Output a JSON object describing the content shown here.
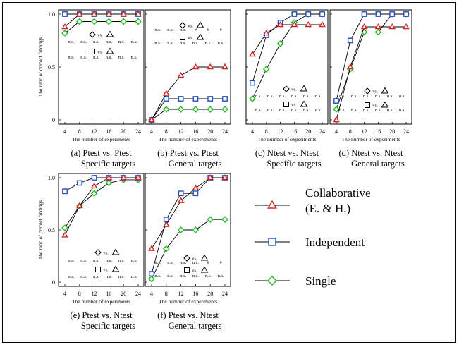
{
  "chart_data": [
    {
      "id": "a",
      "type": "line",
      "caption_line1": "(a) Ptest vs. Ptest",
      "caption_line2": "Specific targets",
      "ylabel": "The ratio of correct findings",
      "xlabel": "The number of experiments",
      "x": [
        4,
        8,
        12,
        16,
        20,
        24
      ],
      "xticks": [
        "4",
        "8",
        "12",
        "16",
        "20",
        "24"
      ],
      "yticks": [
        "0",
        "0.5",
        "1.0"
      ],
      "ylim": [
        0,
        1
      ],
      "series": [
        {
          "name": "Collaborative (E. & H.)",
          "values": [
            0.88,
            1.0,
            1.0,
            1.0,
            1.0,
            1.0
          ]
        },
        {
          "name": "Independent",
          "values": [
            1.0,
            1.0,
            1.0,
            1.0,
            1.0,
            1.0
          ]
        },
        {
          "name": "Single",
          "values": [
            0.82,
            0.93,
            0.93,
            0.93,
            0.93,
            0.93
          ]
        }
      ],
      "sig_rows": [
        [
          "n.s.",
          "n.s.",
          "n.s.",
          "n.s.",
          "n.s.",
          "n.s."
        ],
        [
          "n.s.",
          "n.s.",
          "n.s.",
          "n.s.",
          "n.s.",
          "n.s."
        ]
      ]
    },
    {
      "id": "b",
      "type": "line",
      "caption_line1": "(b) Ptest vs. Ptest",
      "caption_line2": "General targets",
      "xlabel": "The number of experiments",
      "x": [
        4,
        8,
        12,
        16,
        20,
        24
      ],
      "xticks": [
        "4",
        "8",
        "12",
        "16",
        "20",
        "24"
      ],
      "ylim": [
        0,
        1
      ],
      "series": [
        {
          "name": "Collaborative (E. & H.)",
          "values": [
            0,
            0.25,
            0.42,
            0.5,
            0.5,
            0.5
          ]
        },
        {
          "name": "Independent",
          "values": [
            0,
            0.2,
            0.2,
            0.2,
            0.2,
            0.2
          ]
        },
        {
          "name": "Single",
          "values": [
            0,
            0.1,
            0.1,
            0.1,
            0.1,
            0.1
          ]
        }
      ],
      "sig_rows": [
        [
          "n.s.",
          "n.s.",
          "n.s.",
          "#",
          "#",
          "#"
        ],
        [
          "n.s.",
          "n.s.",
          "n.s.",
          "n.s.",
          "n.s.",
          "n.s."
        ]
      ]
    },
    {
      "id": "c",
      "type": "line",
      "caption_line1": "(c) Ntest vs. Ntest",
      "caption_line2": "Specific targets",
      "xlabel": "The number of experiments",
      "x": [
        4,
        8,
        12,
        16,
        20,
        24
      ],
      "xticks": [
        "4",
        "8",
        "12",
        "16",
        "20",
        "24"
      ],
      "ylim": [
        0,
        1
      ],
      "series": [
        {
          "name": "Collaborative (E. & H.)",
          "values": [
            0.62,
            0.82,
            0.9,
            0.9,
            0.9,
            0.9
          ]
        },
        {
          "name": "Independent",
          "values": [
            0.35,
            0.8,
            0.92,
            1.0,
            1.0,
            1.0
          ]
        },
        {
          "name": "Single",
          "values": [
            0.2,
            0.48,
            0.72,
            0.92,
            1.0,
            1.0
          ]
        }
      ],
      "sig_rows": [
        [
          "n.s.",
          "n.s.",
          "n.s.",
          "n.s.",
          "n.s.",
          "n.s."
        ],
        [
          "n.s.",
          "n.s.",
          "n.s.",
          "n.s.",
          "n.s.",
          "n.s."
        ]
      ]
    },
    {
      "id": "d",
      "type": "line",
      "caption_line1": "(d) Ntest vs. Ntest",
      "caption_line2": "General targets",
      "xlabel": "The number of experiments",
      "x": [
        4,
        8,
        12,
        16,
        20,
        24
      ],
      "xticks": [
        "4",
        "8",
        "12",
        "16",
        "20",
        "24"
      ],
      "ylim": [
        0,
        1
      ],
      "series": [
        {
          "name": "Collaborative (E. & H.)",
          "values": [
            0.0,
            0.5,
            0.88,
            0.88,
            0.88,
            0.88
          ]
        },
        {
          "name": "Independent",
          "values": [
            0.18,
            0.75,
            1.0,
            1.0,
            1.0,
            1.0
          ]
        },
        {
          "name": "Single",
          "values": [
            0.1,
            0.48,
            0.83,
            0.83,
            1.0,
            1.0
          ]
        }
      ],
      "sig_rows": [
        [
          "n.s.",
          "n.s.",
          "n.s.",
          "n.s.",
          "n.s.",
          "n.s."
        ],
        [
          "n.s.",
          "n.s.",
          "n.s.",
          "n.s.",
          "n.s.",
          "n.s."
        ]
      ]
    },
    {
      "id": "e",
      "type": "line",
      "caption_line1": "(e) Ptest vs. Ntest",
      "caption_line2": "Specific targets",
      "ylabel": "The ratio of correct findings",
      "xlabel": "The number of experiments",
      "x": [
        4,
        8,
        12,
        16,
        20,
        24
      ],
      "xticks": [
        "4",
        "8",
        "12",
        "16",
        "20",
        "24"
      ],
      "yticks": [
        "0",
        "0.5",
        "1.0"
      ],
      "ylim": [
        0,
        1
      ],
      "series": [
        {
          "name": "Collaborative (E. & H.)",
          "values": [
            0.45,
            0.73,
            0.92,
            1.0,
            1.0,
            1.0
          ]
        },
        {
          "name": "Independent",
          "values": [
            0.87,
            0.95,
            1.0,
            1.0,
            1.0,
            1.0
          ]
        },
        {
          "name": "Single",
          "values": [
            0.52,
            0.73,
            0.85,
            0.95,
            0.98,
            0.98
          ]
        }
      ],
      "sig_rows": [
        [
          "n.s.",
          "n.s.",
          "n.s.",
          "n.s.",
          "n.s.",
          "n.s."
        ],
        [
          "n.s.",
          "n.s.",
          "n.s.",
          "n.s.",
          "n.s.",
          "n.s."
        ]
      ]
    },
    {
      "id": "f",
      "type": "line",
      "caption_line1": "(f) Ptest vs. Ntest",
      "caption_line2": "General targets",
      "xlabel": "The number of experiments",
      "x": [
        4,
        8,
        12,
        16,
        20,
        24
      ],
      "xticks": [
        "4",
        "8",
        "12",
        "16",
        "20",
        "24"
      ],
      "ylim": [
        0,
        1
      ],
      "series": [
        {
          "name": "Collaborative (E. & H.)",
          "values": [
            0.32,
            0.55,
            0.78,
            0.9,
            1.0,
            1.0
          ]
        },
        {
          "name": "Independent",
          "values": [
            0.08,
            0.6,
            0.85,
            0.85,
            1.0,
            1.0
          ]
        },
        {
          "name": "Single",
          "values": [
            0.03,
            0.32,
            0.5,
            0.5,
            0.6,
            0.6
          ]
        }
      ],
      "sig_rows": [
        [
          "n.s.",
          "n.s.",
          "n.s.",
          "n.s.",
          "#",
          "#"
        ],
        [
          "n.s.",
          "n.s.",
          "n.s.",
          "n.s.",
          "n.s.",
          "n.s."
        ]
      ]
    }
  ],
  "comparison_labels": {
    "row1": "vs.",
    "row2": "vs."
  },
  "legend": [
    {
      "label_lines": [
        "Collaborative",
        "(E. & H.)"
      ],
      "marker": "triangle",
      "color": "#e0201b"
    },
    {
      "label_lines": [
        "Independent"
      ],
      "marker": "square",
      "color": "#1f4fd8"
    },
    {
      "label_lines": [
        "Single"
      ],
      "marker": "diamond",
      "color": "#19c319"
    }
  ],
  "colors": {
    "collaborative": "#e0201b",
    "independent": "#1f4fd8",
    "single": "#19c319"
  }
}
